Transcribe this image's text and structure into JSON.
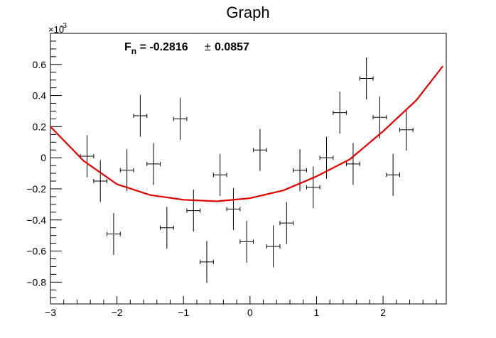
{
  "chart_data": {
    "type": "scatter",
    "title": "Graph",
    "xlabel": "",
    "ylabel": "",
    "xlim": [
      -3,
      2.95
    ],
    "ylim": [
      -0.00094,
      0.0008
    ],
    "x_ticks": [
      -3,
      -2,
      -1,
      0,
      1,
      2
    ],
    "x_tick_labels": [
      "−3",
      "−2",
      "−1",
      "0",
      "1",
      "2"
    ],
    "y_ticks": [
      -0.0008,
      -0.0006,
      -0.0004,
      -0.0002,
      0,
      0.0002,
      0.0004,
      0.0006
    ],
    "y_tick_labels": [
      "−0.8",
      "−0.6",
      "−0.4",
      "−0.2",
      "0",
      "0.2",
      "0.4",
      "0.6"
    ],
    "y_exponent_label": "×10",
    "y_exponent_power": "-3",
    "annotation": {
      "symbol": "F",
      "subscript": "n",
      "value_text": " = -0.2816",
      "pm_text": "±",
      "error_text": "0.0857"
    },
    "grid": false,
    "series": [
      {
        "type": "errorbar",
        "color": "#000000",
        "x_err": 0.1,
        "y_err": 0.000135,
        "points": [
          {
            "x": -2.45,
            "y": 1e-05
          },
          {
            "x": -2.25,
            "y": -0.00015
          },
          {
            "x": -2.05,
            "y": -0.00049
          },
          {
            "x": -1.85,
            "y": -8e-05
          },
          {
            "x": -1.65,
            "y": 0.00027
          },
          {
            "x": -1.45,
            "y": -4e-05
          },
          {
            "x": -1.25,
            "y": -0.00045
          },
          {
            "x": -1.05,
            "y": 0.00025
          },
          {
            "x": -0.85,
            "y": -0.00034
          },
          {
            "x": -0.65,
            "y": -0.00067
          },
          {
            "x": -0.45,
            "y": -0.00011
          },
          {
            "x": -0.25,
            "y": -0.00033
          },
          {
            "x": -0.05,
            "y": -0.00054
          },
          {
            "x": 0.15,
            "y": 5e-05
          },
          {
            "x": 0.35,
            "y": -0.00057
          },
          {
            "x": 0.55,
            "y": -0.00042
          },
          {
            "x": 0.75,
            "y": -8e-05
          },
          {
            "x": 0.95,
            "y": -0.00019
          },
          {
            "x": 1.15,
            "y": 0.0
          },
          {
            "x": 1.35,
            "y": 0.00029
          },
          {
            "x": 1.55,
            "y": -4e-05
          },
          {
            "x": 1.75,
            "y": 0.00051
          },
          {
            "x": 1.95,
            "y": 0.00026
          },
          {
            "x": 2.15,
            "y": -0.00011
          },
          {
            "x": 2.35,
            "y": 0.00018
          }
        ]
      },
      {
        "type": "fit",
        "color": "#e00000",
        "equation": "quadratic",
        "x": [
          -3.0,
          -2.5,
          -2.0,
          -1.5,
          -1.0,
          -0.5,
          0.0,
          0.5,
          1.0,
          1.5,
          2.0,
          2.5,
          2.9
        ],
        "y": [
          0.0002,
          -2e-05,
          -0.00017,
          -0.00024,
          -0.00027,
          -0.00028,
          -0.00026,
          -0.00021,
          -0.00012,
          -1e-05,
          0.00017,
          0.00037,
          0.00059
        ]
      }
    ]
  }
}
